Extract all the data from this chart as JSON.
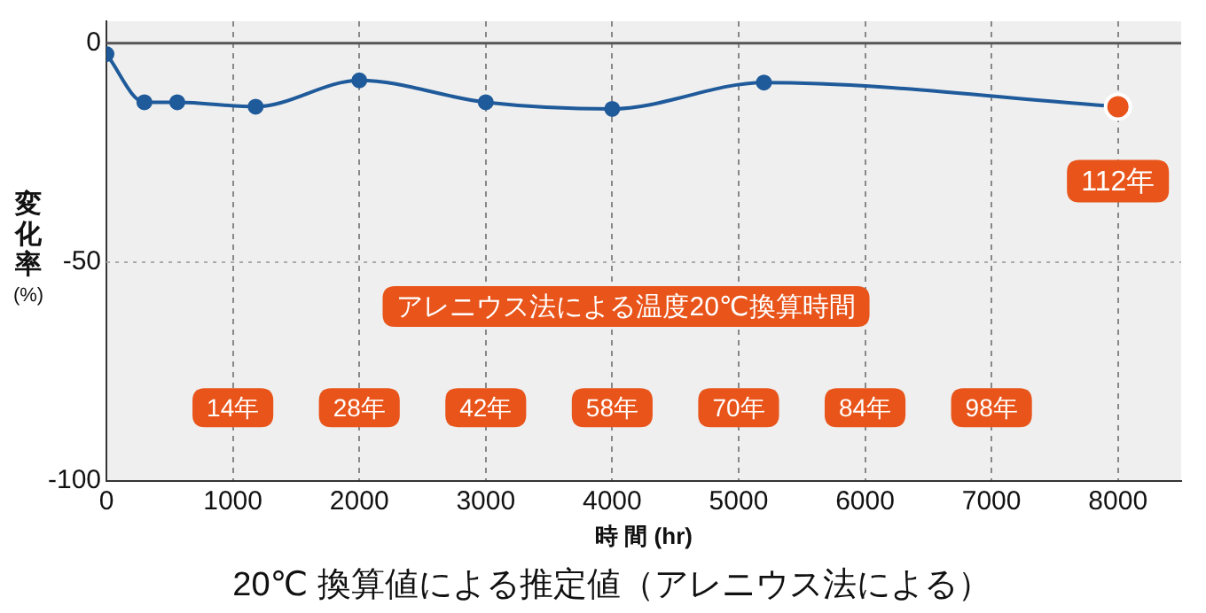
{
  "chart_data": {
    "type": "line",
    "title": "20℃ 換算値による推定値（アレニウス法による）",
    "xlabel": "時 間 (hr)",
    "ylabel": "変化率 (%)",
    "x": [
      0,
      300,
      560,
      1180,
      2000,
      3000,
      4000,
      5200,
      8000
    ],
    "series": [
      {
        "color": "#1f5a9a",
        "colors": [
          "#1f5a9a",
          "#1f5a9a",
          "#1f5a9a",
          "#1f5a9a",
          "#1f5a9a",
          "#1f5a9a",
          "#1f5a9a",
          "#1f5a9a",
          "#e8541a"
        ],
        "values": [
          -2.5,
          -13.5,
          -13.5,
          -14.5,
          -8.5,
          -13.5,
          -15,
          -9,
          -14.5
        ]
      }
    ],
    "xlim": [
      0,
      8500
    ],
    "xticks": [
      0,
      1000,
      2000,
      3000,
      4000,
      5000,
      6000,
      7000,
      8000
    ],
    "ylim": [
      -100,
      5
    ],
    "yticks": [
      -100,
      -50,
      0
    ],
    "grid": "x",
    "marker": "circle",
    "line_style": "solid",
    "legend": false,
    "annotations": [
      "アレニウス法による温度20℃換算時間",
      "14年",
      "28年",
      "42年",
      "58年",
      "70年",
      "84年",
      "98年",
      "112年"
    ],
    "ref_lines": [
      {
        "axis": "y",
        "value": 0,
        "color": "#555555",
        "line_style": "solid"
      },
      {
        "axis": "y",
        "value": -50,
        "color": "#aaaaaa",
        "line_style": "dotted"
      }
    ]
  }
}
